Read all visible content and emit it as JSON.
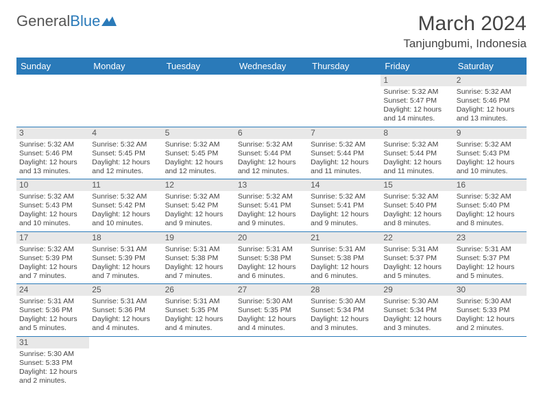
{
  "brand": {
    "general": "General",
    "blue": "Blue"
  },
  "header": {
    "month_title": "March 2024",
    "location": "Tanjungbumi, Indonesia"
  },
  "colors": {
    "header_bg": "#2a7ab9",
    "header_text": "#ffffff",
    "daynum_bg": "#e8e8e8",
    "daynum_text": "#555555",
    "cell_border": "#2a7ab9",
    "body_text": "#444444"
  },
  "weekdays": [
    "Sunday",
    "Monday",
    "Tuesday",
    "Wednesday",
    "Thursday",
    "Friday",
    "Saturday"
  ],
  "weeks": [
    [
      null,
      null,
      null,
      null,
      null,
      {
        "n": "1",
        "sr": "Sunrise: 5:32 AM",
        "ss": "Sunset: 5:47 PM",
        "d1": "Daylight: 12 hours",
        "d2": "and 14 minutes."
      },
      {
        "n": "2",
        "sr": "Sunrise: 5:32 AM",
        "ss": "Sunset: 5:46 PM",
        "d1": "Daylight: 12 hours",
        "d2": "and 13 minutes."
      }
    ],
    [
      {
        "n": "3",
        "sr": "Sunrise: 5:32 AM",
        "ss": "Sunset: 5:46 PM",
        "d1": "Daylight: 12 hours",
        "d2": "and 13 minutes."
      },
      {
        "n": "4",
        "sr": "Sunrise: 5:32 AM",
        "ss": "Sunset: 5:45 PM",
        "d1": "Daylight: 12 hours",
        "d2": "and 12 minutes."
      },
      {
        "n": "5",
        "sr": "Sunrise: 5:32 AM",
        "ss": "Sunset: 5:45 PM",
        "d1": "Daylight: 12 hours",
        "d2": "and 12 minutes."
      },
      {
        "n": "6",
        "sr": "Sunrise: 5:32 AM",
        "ss": "Sunset: 5:44 PM",
        "d1": "Daylight: 12 hours",
        "d2": "and 12 minutes."
      },
      {
        "n": "7",
        "sr": "Sunrise: 5:32 AM",
        "ss": "Sunset: 5:44 PM",
        "d1": "Daylight: 12 hours",
        "d2": "and 11 minutes."
      },
      {
        "n": "8",
        "sr": "Sunrise: 5:32 AM",
        "ss": "Sunset: 5:44 PM",
        "d1": "Daylight: 12 hours",
        "d2": "and 11 minutes."
      },
      {
        "n": "9",
        "sr": "Sunrise: 5:32 AM",
        "ss": "Sunset: 5:43 PM",
        "d1": "Daylight: 12 hours",
        "d2": "and 10 minutes."
      }
    ],
    [
      {
        "n": "10",
        "sr": "Sunrise: 5:32 AM",
        "ss": "Sunset: 5:43 PM",
        "d1": "Daylight: 12 hours",
        "d2": "and 10 minutes."
      },
      {
        "n": "11",
        "sr": "Sunrise: 5:32 AM",
        "ss": "Sunset: 5:42 PM",
        "d1": "Daylight: 12 hours",
        "d2": "and 10 minutes."
      },
      {
        "n": "12",
        "sr": "Sunrise: 5:32 AM",
        "ss": "Sunset: 5:42 PM",
        "d1": "Daylight: 12 hours",
        "d2": "and 9 minutes."
      },
      {
        "n": "13",
        "sr": "Sunrise: 5:32 AM",
        "ss": "Sunset: 5:41 PM",
        "d1": "Daylight: 12 hours",
        "d2": "and 9 minutes."
      },
      {
        "n": "14",
        "sr": "Sunrise: 5:32 AM",
        "ss": "Sunset: 5:41 PM",
        "d1": "Daylight: 12 hours",
        "d2": "and 9 minutes."
      },
      {
        "n": "15",
        "sr": "Sunrise: 5:32 AM",
        "ss": "Sunset: 5:40 PM",
        "d1": "Daylight: 12 hours",
        "d2": "and 8 minutes."
      },
      {
        "n": "16",
        "sr": "Sunrise: 5:32 AM",
        "ss": "Sunset: 5:40 PM",
        "d1": "Daylight: 12 hours",
        "d2": "and 8 minutes."
      }
    ],
    [
      {
        "n": "17",
        "sr": "Sunrise: 5:32 AM",
        "ss": "Sunset: 5:39 PM",
        "d1": "Daylight: 12 hours",
        "d2": "and 7 minutes."
      },
      {
        "n": "18",
        "sr": "Sunrise: 5:31 AM",
        "ss": "Sunset: 5:39 PM",
        "d1": "Daylight: 12 hours",
        "d2": "and 7 minutes."
      },
      {
        "n": "19",
        "sr": "Sunrise: 5:31 AM",
        "ss": "Sunset: 5:38 PM",
        "d1": "Daylight: 12 hours",
        "d2": "and 7 minutes."
      },
      {
        "n": "20",
        "sr": "Sunrise: 5:31 AM",
        "ss": "Sunset: 5:38 PM",
        "d1": "Daylight: 12 hours",
        "d2": "and 6 minutes."
      },
      {
        "n": "21",
        "sr": "Sunrise: 5:31 AM",
        "ss": "Sunset: 5:38 PM",
        "d1": "Daylight: 12 hours",
        "d2": "and 6 minutes."
      },
      {
        "n": "22",
        "sr": "Sunrise: 5:31 AM",
        "ss": "Sunset: 5:37 PM",
        "d1": "Daylight: 12 hours",
        "d2": "and 5 minutes."
      },
      {
        "n": "23",
        "sr": "Sunrise: 5:31 AM",
        "ss": "Sunset: 5:37 PM",
        "d1": "Daylight: 12 hours",
        "d2": "and 5 minutes."
      }
    ],
    [
      {
        "n": "24",
        "sr": "Sunrise: 5:31 AM",
        "ss": "Sunset: 5:36 PM",
        "d1": "Daylight: 12 hours",
        "d2": "and 5 minutes."
      },
      {
        "n": "25",
        "sr": "Sunrise: 5:31 AM",
        "ss": "Sunset: 5:36 PM",
        "d1": "Daylight: 12 hours",
        "d2": "and 4 minutes."
      },
      {
        "n": "26",
        "sr": "Sunrise: 5:31 AM",
        "ss": "Sunset: 5:35 PM",
        "d1": "Daylight: 12 hours",
        "d2": "and 4 minutes."
      },
      {
        "n": "27",
        "sr": "Sunrise: 5:30 AM",
        "ss": "Sunset: 5:35 PM",
        "d1": "Daylight: 12 hours",
        "d2": "and 4 minutes."
      },
      {
        "n": "28",
        "sr": "Sunrise: 5:30 AM",
        "ss": "Sunset: 5:34 PM",
        "d1": "Daylight: 12 hours",
        "d2": "and 3 minutes."
      },
      {
        "n": "29",
        "sr": "Sunrise: 5:30 AM",
        "ss": "Sunset: 5:34 PM",
        "d1": "Daylight: 12 hours",
        "d2": "and 3 minutes."
      },
      {
        "n": "30",
        "sr": "Sunrise: 5:30 AM",
        "ss": "Sunset: 5:33 PM",
        "d1": "Daylight: 12 hours",
        "d2": "and 2 minutes."
      }
    ],
    [
      {
        "n": "31",
        "sr": "Sunrise: 5:30 AM",
        "ss": "Sunset: 5:33 PM",
        "d1": "Daylight: 12 hours",
        "d2": "and 2 minutes."
      },
      null,
      null,
      null,
      null,
      null,
      null
    ]
  ]
}
